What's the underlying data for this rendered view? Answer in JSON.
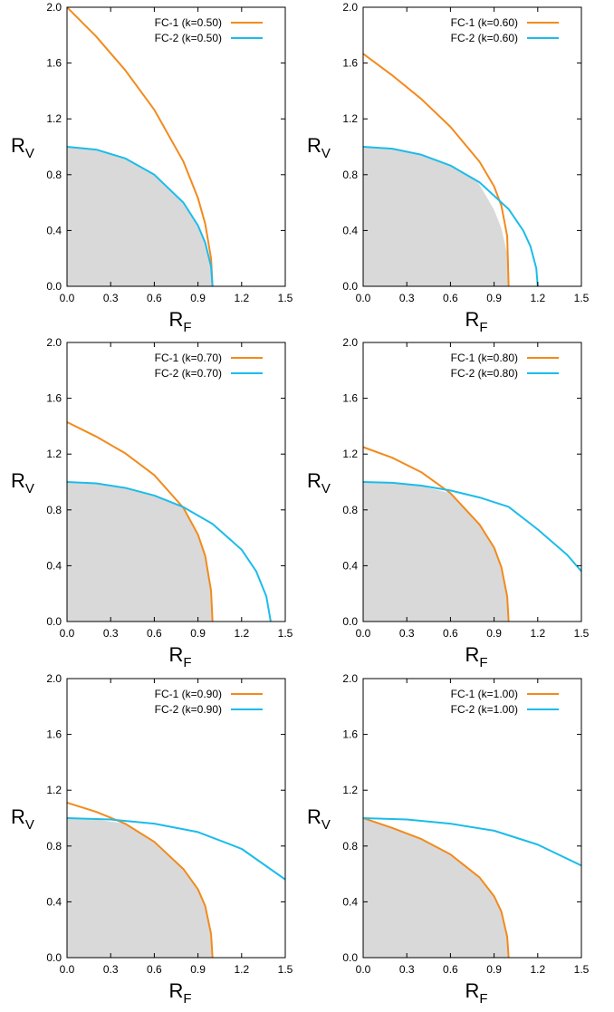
{
  "colors": {
    "fc1": "#f28a1c",
    "fc2": "#1cbcea",
    "feasible_fill": "#d9d9d9",
    "axis": "#000000"
  },
  "layout": "3 rows x 2 columns grid of identical plots",
  "chart_data": [
    {
      "type": "line",
      "xlabel": {
        "main": "R",
        "sub": "F"
      },
      "ylabel": {
        "main": "R",
        "sub": "V"
      },
      "xlim": [
        0.0,
        1.5
      ],
      "ylim": [
        0.0,
        2.0
      ],
      "xticks": [
        "0.0",
        "0.3",
        "0.6",
        "0.9",
        "1.2",
        "1.5"
      ],
      "yticks": [
        "0.0",
        "0.4",
        "0.8",
        "1.2",
        "1.6",
        "2.0"
      ],
      "legend_position": "top-right",
      "series": [
        {
          "name": "FC-1 (k=0.50)",
          "color": "fc1",
          "points": [
            [
              0.0,
              2.0
            ],
            [
              0.2,
              1.791
            ],
            [
              0.4,
              1.549
            ],
            [
              0.6,
              1.265
            ],
            [
              0.8,
              0.894
            ],
            [
              0.9,
              0.632
            ],
            [
              0.95,
              0.447
            ],
            [
              0.99,
              0.2
            ],
            [
              1.0,
              0.0
            ]
          ]
        },
        {
          "name": "FC-2 (k=0.50)",
          "color": "fc2",
          "points": [
            [
              0.0,
              1.0
            ],
            [
              0.2,
              0.98
            ],
            [
              0.4,
              0.917
            ],
            [
              0.6,
              0.8
            ],
            [
              0.8,
              0.6
            ],
            [
              0.9,
              0.436
            ],
            [
              0.95,
              0.312
            ],
            [
              0.99,
              0.141
            ],
            [
              1.0,
              0.0
            ]
          ]
        }
      ],
      "feasible_region": {
        "points": [
          [
            0.0,
            1.0
          ],
          [
            0.2,
            0.98
          ],
          [
            0.4,
            0.917
          ],
          [
            0.6,
            0.8
          ],
          [
            0.8,
            0.6
          ],
          [
            0.9,
            0.436
          ],
          [
            0.95,
            0.312
          ],
          [
            0.99,
            0.141
          ],
          [
            1.0,
            0.0
          ]
        ]
      }
    },
    {
      "type": "line",
      "xlabel": {
        "main": "R",
        "sub": "F"
      },
      "ylabel": {
        "main": "R",
        "sub": "V"
      },
      "xlim": [
        0.0,
        1.5
      ],
      "ylim": [
        0.0,
        2.0
      ],
      "xticks": [
        "0.0",
        "0.3",
        "0.6",
        "0.9",
        "1.2",
        "1.5"
      ],
      "yticks": [
        "0.0",
        "0.4",
        "0.8",
        "1.2",
        "1.6",
        "2.0"
      ],
      "legend_position": "top-right",
      "series": [
        {
          "name": "FC-1 (k=0.60)",
          "color": "fc1",
          "points": [
            [
              0.0,
              1.667
            ],
            [
              0.2,
              1.512
            ],
            [
              0.4,
              1.342
            ],
            [
              0.6,
              1.143
            ],
            [
              0.8,
              0.893
            ],
            [
              0.9,
              0.716
            ],
            [
              0.95,
              0.578
            ],
            [
              0.99,
              0.36
            ],
            [
              1.0,
              0.0
            ]
          ]
        },
        {
          "name": "FC-2 (k=0.60)",
          "color": "fc2",
          "points": [
            [
              0.0,
              1.0
            ],
            [
              0.2,
              0.986
            ],
            [
              0.4,
              0.943
            ],
            [
              0.6,
              0.866
            ],
            [
              0.8,
              0.745
            ],
            [
              1.0,
              0.553
            ],
            [
              1.1,
              0.4
            ],
            [
              1.15,
              0.286
            ],
            [
              1.19,
              0.129
            ],
            [
              1.2,
              0.0
            ]
          ]
        }
      ],
      "feasible_region": {
        "points": [
          [
            0.0,
            1.0
          ],
          [
            0.2,
            0.986
          ],
          [
            0.4,
            0.943
          ],
          [
            0.6,
            0.866
          ],
          [
            0.78,
            0.758
          ],
          [
            0.8,
            0.728
          ],
          [
            0.9,
            0.548
          ],
          [
            0.95,
            0.416
          ],
          [
            0.99,
            0.232
          ],
          [
            1.0,
            0.0
          ]
        ]
      }
    },
    {
      "type": "line",
      "xlabel": {
        "main": "R",
        "sub": "F"
      },
      "ylabel": {
        "main": "R",
        "sub": "V"
      },
      "xlim": [
        0.0,
        1.5
      ],
      "ylim": [
        0.0,
        2.0
      ],
      "xticks": [
        "0.0",
        "0.3",
        "0.6",
        "0.9",
        "1.2",
        "1.5"
      ],
      "yticks": [
        "0.0",
        "0.4",
        "0.8",
        "1.2",
        "1.6",
        "2.0"
      ],
      "legend_position": "top-right",
      "series": [
        {
          "name": "FC-1 (k=0.70)",
          "color": "fc1",
          "points": [
            [
              0.0,
              1.429
            ],
            [
              0.2,
              1.326
            ],
            [
              0.4,
              1.206
            ],
            [
              0.6,
              1.049
            ],
            [
              0.8,
              0.815
            ],
            [
              0.9,
              0.623
            ],
            [
              0.95,
              0.47
            ],
            [
              0.99,
              0.22
            ],
            [
              1.0,
              0.0
            ]
          ]
        },
        {
          "name": "FC-2 (k=0.70)",
          "color": "fc2",
          "points": [
            [
              0.0,
              1.0
            ],
            [
              0.2,
              0.99
            ],
            [
              0.4,
              0.958
            ],
            [
              0.6,
              0.903
            ],
            [
              0.8,
              0.82
            ],
            [
              1.0,
              0.7
            ],
            [
              1.2,
              0.515
            ],
            [
              1.3,
              0.36
            ],
            [
              1.37,
              0.18
            ],
            [
              1.4,
              0.0
            ]
          ]
        }
      ],
      "feasible_region": {
        "points": [
          [
            0.0,
            1.0
          ],
          [
            0.2,
            0.99
          ],
          [
            0.4,
            0.958
          ],
          [
            0.58,
            0.905
          ],
          [
            0.6,
            0.9
          ],
          [
            0.8,
            0.815
          ],
          [
            0.9,
            0.623
          ],
          [
            0.95,
            0.47
          ],
          [
            0.99,
            0.22
          ],
          [
            1.0,
            0.0
          ]
        ]
      }
    },
    {
      "type": "line",
      "xlabel": {
        "main": "R",
        "sub": "F"
      },
      "ylabel": {
        "main": "R",
        "sub": "V"
      },
      "xlim": [
        0.0,
        1.5
      ],
      "ylim": [
        0.0,
        2.0
      ],
      "xticks": [
        "0.0",
        "0.3",
        "0.6",
        "0.9",
        "1.2",
        "1.5"
      ],
      "yticks": [
        "0.0",
        "0.4",
        "0.8",
        "1.2",
        "1.6",
        "2.0"
      ],
      "legend_position": "top-right",
      "series": [
        {
          "name": "FC-1 (k=0.80)",
          "color": "fc1",
          "points": [
            [
              0.0,
              1.25
            ],
            [
              0.2,
              1.174
            ],
            [
              0.4,
              1.07
            ],
            [
              0.6,
              0.92
            ],
            [
              0.8,
              0.695
            ],
            [
              0.9,
              0.53
            ],
            [
              0.95,
              0.39
            ],
            [
              0.99,
              0.18
            ],
            [
              1.0,
              0.0
            ]
          ]
        },
        {
          "name": "FC-2 (k=0.80)",
          "color": "fc2",
          "points": [
            [
              0.0,
              1.0
            ],
            [
              0.2,
              0.994
            ],
            [
              0.4,
              0.974
            ],
            [
              0.6,
              0.939
            ],
            [
              0.8,
              0.889
            ],
            [
              1.0,
              0.822
            ],
            [
              1.2,
              0.66
            ],
            [
              1.4,
              0.48
            ],
            [
              1.5,
              0.36
            ]
          ]
        }
      ],
      "feasible_region": {
        "points": [
          [
            0.0,
            1.0
          ],
          [
            0.2,
            0.994
          ],
          [
            0.4,
            0.97
          ],
          [
            0.6,
            0.92
          ],
          [
            0.8,
            0.695
          ],
          [
            0.9,
            0.53
          ],
          [
            0.95,
            0.39
          ],
          [
            0.99,
            0.18
          ],
          [
            1.0,
            0.0
          ]
        ]
      }
    },
    {
      "type": "line",
      "xlabel": {
        "main": "R",
        "sub": "F"
      },
      "ylabel": {
        "main": "R",
        "sub": "V"
      },
      "xlim": [
        0.0,
        1.5
      ],
      "ylim": [
        0.0,
        2.0
      ],
      "xticks": [
        "0.0",
        "0.3",
        "0.6",
        "0.9",
        "1.2",
        "1.5"
      ],
      "yticks": [
        "0.0",
        "0.4",
        "0.8",
        "1.2",
        "1.6",
        "2.0"
      ],
      "legend_position": "top-right",
      "series": [
        {
          "name": "FC-1 (k=0.90)",
          "color": "fc1",
          "points": [
            [
              0.0,
              1.111
            ],
            [
              0.2,
              1.045
            ],
            [
              0.4,
              0.96
            ],
            [
              0.6,
              0.83
            ],
            [
              0.8,
              0.635
            ],
            [
              0.9,
              0.49
            ],
            [
              0.95,
              0.37
            ],
            [
              0.99,
              0.17
            ],
            [
              1.0,
              0.0
            ]
          ]
        },
        {
          "name": "FC-2 (k=0.90)",
          "color": "fc2",
          "points": [
            [
              0.0,
              1.0
            ],
            [
              0.3,
              0.99
            ],
            [
              0.6,
              0.96
            ],
            [
              0.9,
              0.9
            ],
            [
              1.2,
              0.78
            ],
            [
              1.5,
              0.56
            ]
          ]
        }
      ],
      "feasible_region": {
        "points": [
          [
            0.0,
            1.0
          ],
          [
            0.19,
            0.995
          ],
          [
            0.2,
            0.99
          ],
          [
            0.4,
            0.96
          ],
          [
            0.6,
            0.83
          ],
          [
            0.8,
            0.635
          ],
          [
            0.9,
            0.49
          ],
          [
            0.95,
            0.37
          ],
          [
            0.99,
            0.17
          ],
          [
            1.0,
            0.0
          ]
        ]
      }
    },
    {
      "type": "line",
      "xlabel": {
        "main": "R",
        "sub": "F"
      },
      "ylabel": {
        "main": "R",
        "sub": "V"
      },
      "xlim": [
        0.0,
        1.5
      ],
      "ylim": [
        0.0,
        2.0
      ],
      "xticks": [
        "0.0",
        "0.3",
        "0.6",
        "0.9",
        "1.2",
        "1.5"
      ],
      "yticks": [
        "0.0",
        "0.4",
        "0.8",
        "1.2",
        "1.6",
        "2.0"
      ],
      "legend_position": "top-right",
      "series": [
        {
          "name": "FC-1 (k=1.00)",
          "color": "fc1",
          "points": [
            [
              0.0,
              1.0
            ],
            [
              0.2,
              0.93
            ],
            [
              0.4,
              0.85
            ],
            [
              0.6,
              0.74
            ],
            [
              0.8,
              0.575
            ],
            [
              0.9,
              0.44
            ],
            [
              0.95,
              0.33
            ],
            [
              0.99,
              0.15
            ],
            [
              1.0,
              0.0
            ]
          ]
        },
        {
          "name": "FC-2 (k=1.00)",
          "color": "fc2",
          "points": [
            [
              0.0,
              1.0
            ],
            [
              0.3,
              0.99
            ],
            [
              0.6,
              0.96
            ],
            [
              0.9,
              0.91
            ],
            [
              1.2,
              0.81
            ],
            [
              1.5,
              0.66
            ]
          ]
        }
      ],
      "feasible_region": {
        "points": [
          [
            0.0,
            1.0
          ],
          [
            0.2,
            0.93
          ],
          [
            0.4,
            0.85
          ],
          [
            0.6,
            0.74
          ],
          [
            0.8,
            0.575
          ],
          [
            0.9,
            0.44
          ],
          [
            0.95,
            0.33
          ],
          [
            0.99,
            0.15
          ],
          [
            1.0,
            0.0
          ]
        ]
      }
    }
  ]
}
